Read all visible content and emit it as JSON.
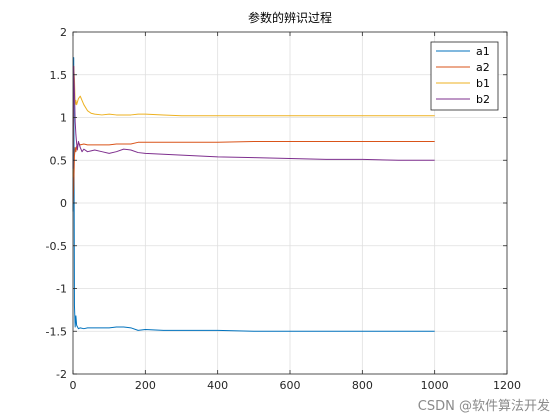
{
  "chart_data": {
    "type": "line",
    "title": "参数的辨识过程",
    "xlabel": "",
    "ylabel": "",
    "xlim": [
      0,
      1200
    ],
    "ylim": [
      -2,
      2
    ],
    "x_ticks": [
      0,
      200,
      400,
      600,
      800,
      1000,
      1200
    ],
    "y_ticks": [
      -2,
      -1.5,
      -1,
      -0.5,
      0,
      0.5,
      1,
      1.5,
      2
    ],
    "grid": true,
    "legend_position": "top-right",
    "series": [
      {
        "name": "a1",
        "color": "#0072BD",
        "x": [
          0,
          2,
          4,
          6,
          8,
          10,
          15,
          20,
          30,
          40,
          60,
          80,
          100,
          120,
          140,
          160,
          180,
          200,
          250,
          300,
          400,
          500,
          600,
          700,
          800,
          900,
          1000
        ],
        "y": [
          -0.1,
          1.7,
          -1.2,
          -1.45,
          -1.32,
          -1.43,
          -1.47,
          -1.46,
          -1.47,
          -1.46,
          -1.46,
          -1.46,
          -1.46,
          -1.45,
          -1.45,
          -1.46,
          -1.49,
          -1.48,
          -1.49,
          -1.49,
          -1.49,
          -1.5,
          -1.5,
          -1.5,
          -1.5,
          -1.5,
          -1.5
        ]
      },
      {
        "name": "a2",
        "color": "#D95319",
        "x": [
          0,
          2,
          4,
          6,
          8,
          10,
          15,
          20,
          30,
          40,
          60,
          80,
          100,
          120,
          140,
          160,
          180,
          200,
          250,
          300,
          400,
          500,
          600,
          700,
          800,
          900,
          1000
        ],
        "y": [
          0,
          0.2,
          0.55,
          0.65,
          0.6,
          0.66,
          0.7,
          0.68,
          0.69,
          0.68,
          0.68,
          0.68,
          0.68,
          0.69,
          0.69,
          0.69,
          0.71,
          0.71,
          0.71,
          0.71,
          0.71,
          0.72,
          0.72,
          0.72,
          0.72,
          0.72,
          0.72
        ]
      },
      {
        "name": "b1",
        "color": "#EDB120",
        "x": [
          0,
          2,
          4,
          6,
          8,
          10,
          15,
          20,
          25,
          30,
          40,
          50,
          60,
          80,
          100,
          120,
          140,
          160,
          180,
          200,
          250,
          300,
          400,
          500,
          600,
          700,
          800,
          900,
          1000
        ],
        "y": [
          0.3,
          1.6,
          1.45,
          1.15,
          1.2,
          1.15,
          1.22,
          1.25,
          1.2,
          1.15,
          1.08,
          1.05,
          1.04,
          1.03,
          1.04,
          1.03,
          1.03,
          1.03,
          1.04,
          1.04,
          1.03,
          1.02,
          1.02,
          1.02,
          1.02,
          1.02,
          1.02,
          1.02,
          1.02
        ]
      },
      {
        "name": "b2",
        "color": "#7E2F8E",
        "x": [
          0,
          2,
          4,
          6,
          8,
          10,
          12,
          15,
          20,
          25,
          30,
          40,
          50,
          60,
          80,
          100,
          120,
          140,
          160,
          180,
          200,
          250,
          300,
          400,
          500,
          600,
          700,
          800,
          900,
          1000
        ],
        "y": [
          0.4,
          1.6,
          1.3,
          0.95,
          0.8,
          0.7,
          0.62,
          0.72,
          0.65,
          0.6,
          0.63,
          0.6,
          0.61,
          0.62,
          0.6,
          0.58,
          0.6,
          0.63,
          0.62,
          0.59,
          0.58,
          0.57,
          0.56,
          0.54,
          0.53,
          0.52,
          0.51,
          0.51,
          0.5,
          0.5
        ]
      }
    ]
  },
  "watermark": "CSDN @软件算法开发"
}
